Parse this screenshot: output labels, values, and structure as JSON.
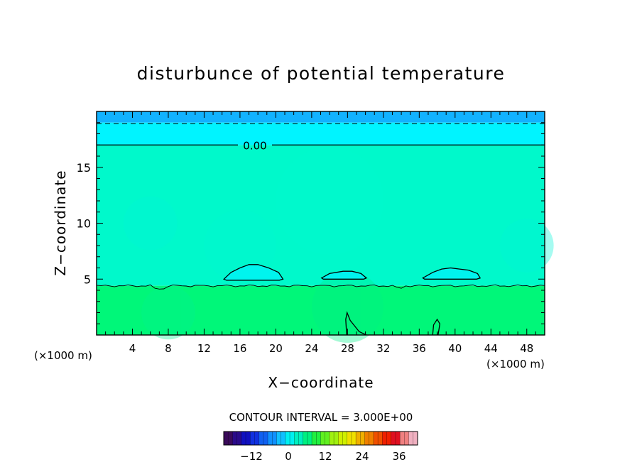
{
  "chart_data": {
    "type": "heatmap",
    "title": "disturbunce of potential temperature",
    "xlabel": "X−coordinate",
    "ylabel": "Z−coordinate",
    "x_unit_left": "(×1000 m)",
    "x_unit_right": "(×1000 m)",
    "xlim": [
      0,
      50
    ],
    "ylim": [
      0,
      20
    ],
    "xticks": [
      "4",
      "8",
      "12",
      "16",
      "20",
      "24",
      "28",
      "32",
      "36",
      "40",
      "44",
      "48"
    ],
    "xtick_values": [
      4,
      8,
      12,
      16,
      20,
      24,
      28,
      32,
      36,
      40,
      44,
      48
    ],
    "yticks": [
      "5",
      "10",
      "15"
    ],
    "ytick_values": [
      5,
      10,
      15
    ],
    "bands": [
      {
        "z0": 19.0,
        "z1": 20.0,
        "color": "#12b2ff"
      },
      {
        "z0": 17.0,
        "z1": 19.0,
        "color": "#00f4ff"
      },
      {
        "z0": 4.4,
        "z1": 17.0,
        "color": "#00f9cb"
      },
      {
        "z0": 0.0,
        "z1": 4.4,
        "color": "#00f779"
      }
    ],
    "contours": [
      {
        "label": "0.00",
        "z": 17.0,
        "style": "solid"
      },
      {
        "label": "",
        "z": 18.9,
        "style": "dashed"
      }
    ],
    "blobs": [
      {
        "x": [
          14.2,
          15.0,
          16.0,
          17.0,
          18.0,
          19.2,
          20.3,
          20.8,
          20.4,
          17.5,
          14.5
        ],
        "z": [
          5.0,
          5.6,
          6.0,
          6.3,
          6.3,
          6.0,
          5.6,
          5.0,
          4.9,
          4.9,
          4.9
        ]
      },
      {
        "x": [
          25.1,
          26.0,
          27.5,
          28.5,
          29.5,
          30.1,
          29.8,
          27.5,
          25.3
        ],
        "z": [
          5.1,
          5.5,
          5.7,
          5.7,
          5.5,
          5.1,
          5.0,
          5.0,
          5.0
        ]
      },
      {
        "x": [
          36.4,
          37.5,
          38.5,
          39.5,
          40.5,
          41.5,
          42.5,
          42.8,
          42.4,
          39.5,
          36.6
        ],
        "z": [
          5.1,
          5.6,
          5.9,
          6.0,
          5.9,
          5.8,
          5.5,
          5.1,
          5.0,
          5.0,
          5.0
        ]
      }
    ],
    "legend_title": "CONTOUR INTERVAL = 3.000E+00",
    "legend_ticks": [
      "−12",
      "0",
      "12",
      "24",
      "36"
    ],
    "legend_tick_values": [
      -12,
      0,
      12,
      24,
      36
    ],
    "legend_range": [
      -21,
      42
    ],
    "legend_colors": [
      "#3a0a5a",
      "#2a0a8a",
      "#1010c0",
      "#1030e0",
      "#1060f0",
      "#1090ff",
      "#10c0ff",
      "#00f0f0",
      "#00f0c0",
      "#00f080",
      "#20f040",
      "#60f020",
      "#a0f010",
      "#d0f000",
      "#f0e000",
      "#f0b000",
      "#f08000",
      "#f05000",
      "#f02000",
      "#e01020",
      "#f08080",
      "#f0b0c0"
    ]
  }
}
